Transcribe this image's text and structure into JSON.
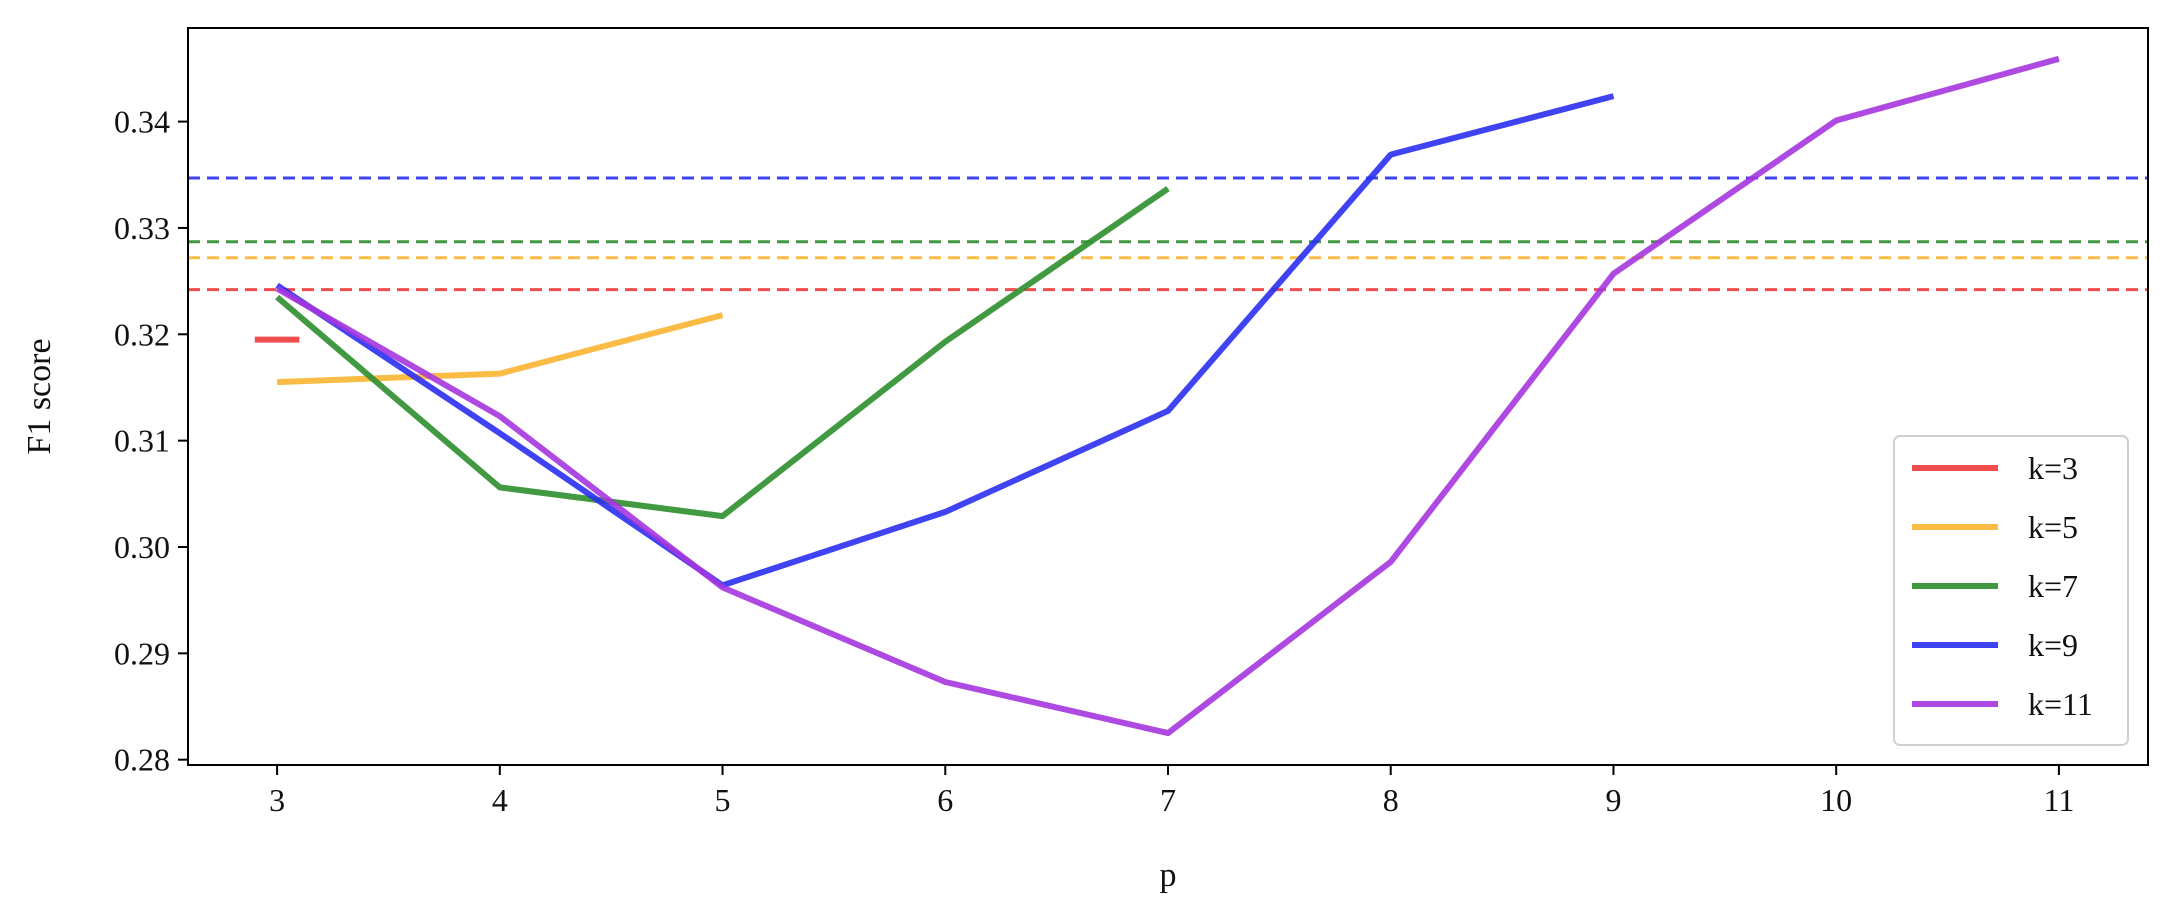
{
  "chart_data": {
    "type": "line",
    "title": "",
    "xlabel": "p",
    "ylabel": "F1 score",
    "xlim": [
      2.6,
      11.4
    ],
    "ylim": [
      0.2795,
      0.3488
    ],
    "xticks": [
      3,
      4,
      5,
      6,
      7,
      8,
      9,
      10,
      11
    ],
    "yticks": [
      0.28,
      0.29,
      0.3,
      0.31,
      0.32,
      0.33,
      0.34
    ],
    "ytick_labels": [
      "0.28",
      "0.29",
      "0.30",
      "0.31",
      "0.32",
      "0.33",
      "0.34"
    ],
    "grid": false,
    "legend_position": "lower-right",
    "series": [
      {
        "name": "k=3",
        "color": "#ef3b3b",
        "x": [
          2.9,
          3.1
        ],
        "y": [
          0.3195,
          0.3195
        ],
        "baseline": 0.3242
      },
      {
        "name": "k=5",
        "color": "#fbb531",
        "x": [
          3,
          4,
          5
        ],
        "y": [
          0.3155,
          0.3163,
          0.3218
        ],
        "baseline": 0.3272
      },
      {
        "name": "k=7",
        "color": "#2c8f2c",
        "x": [
          3,
          4,
          5,
          6,
          7
        ],
        "y": [
          0.3235,
          0.3056,
          0.3029,
          0.3193,
          0.3337
        ],
        "baseline": 0.3287
      },
      {
        "name": "k=9",
        "color": "#2a2ff0",
        "x": [
          3,
          4,
          5,
          6,
          7,
          8,
          9
        ],
        "y": [
          0.3246,
          0.3107,
          0.2964,
          0.3033,
          0.3128,
          0.3369,
          0.3424
        ],
        "baseline": 0.3347
      },
      {
        "name": "k=11",
        "color": "#a536de",
        "x": [
          3,
          4,
          5,
          6,
          7,
          8,
          9,
          10,
          11
        ],
        "y": [
          0.3243,
          0.3123,
          0.2962,
          0.2873,
          0.2825,
          0.2986,
          0.3257,
          0.3401,
          0.3459
        ],
        "baseline": 0.3347
      }
    ]
  }
}
